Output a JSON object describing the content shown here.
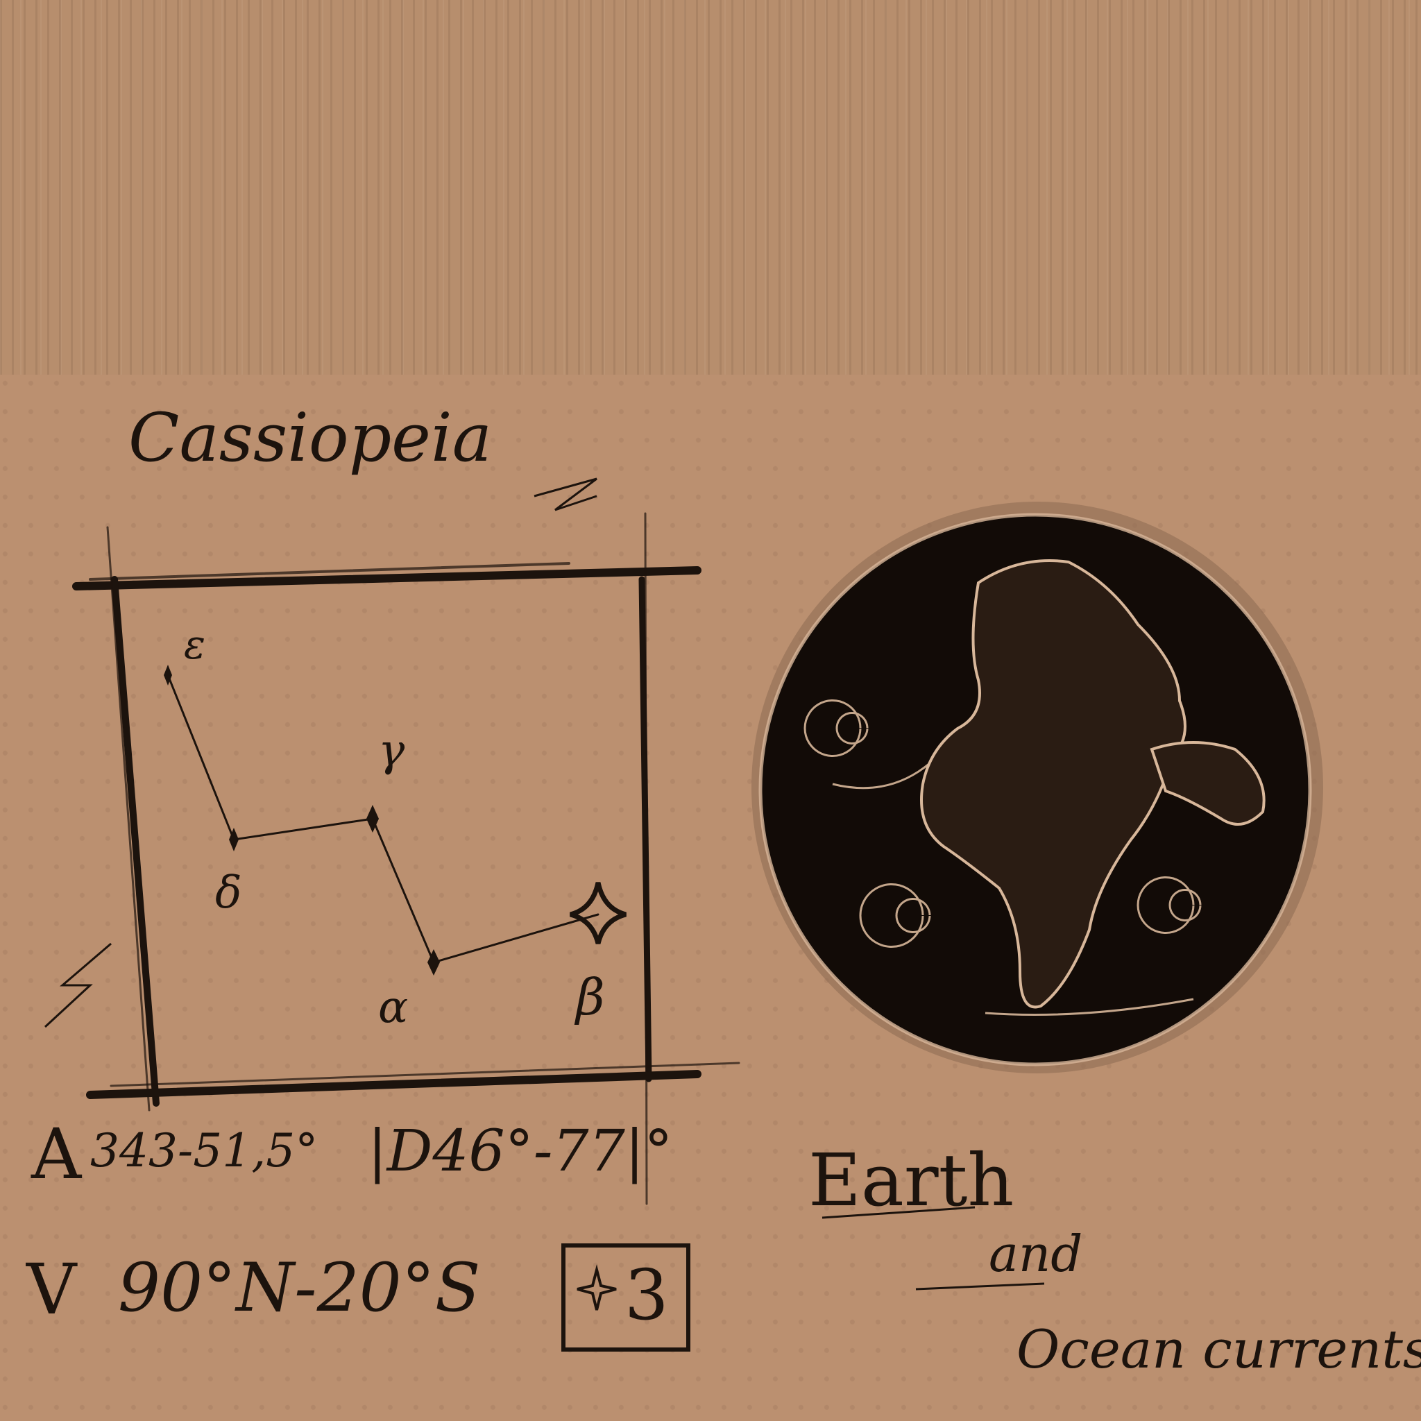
{
  "constellation": {
    "title": "Cassiopeia",
    "stars": {
      "epsilon": "ε",
      "gamma": "γ",
      "delta": "δ",
      "alpha": "α",
      "beta": "β"
    }
  },
  "coordinates": {
    "ra_letter": "A",
    "ra_range": "343-51,5°",
    "dec_label": "|D46°-77|°",
    "visibility_letter": "V",
    "visibility_range": "90°N-20°S",
    "magnitude_badge": "3"
  },
  "earth_caption": {
    "title": "Earth",
    "conjunction": "and",
    "subtitle": "Ocean currents"
  },
  "colors": {
    "paper": "#b78e6d",
    "ink": "#1c130d",
    "globe": "#120b07",
    "highlight": "#d8b79a"
  }
}
